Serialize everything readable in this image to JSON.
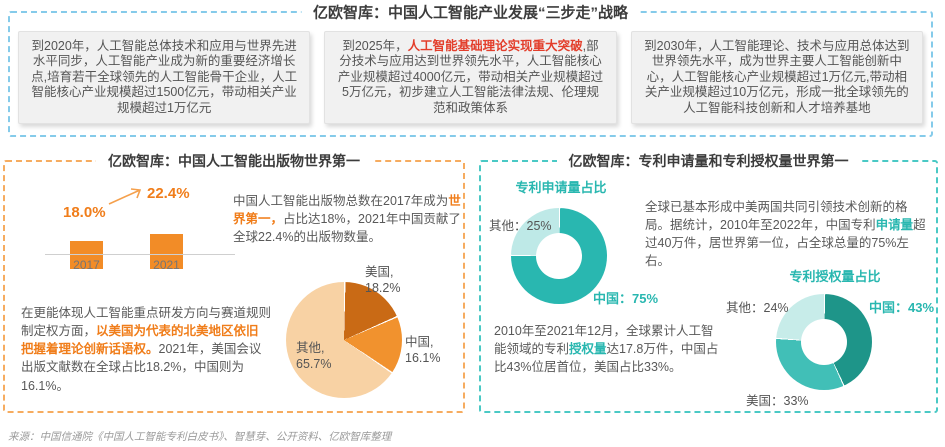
{
  "header": {
    "title": "亿欧智库：中国人工智能产业发展“三步走”战略"
  },
  "roadmap": {
    "milestones": [
      {
        "before": "到2020年，人工智能总体技术和应用与世界先进水平同步，人工智能产业成为新的重要经济增长点,培育若干全球领先的人工智能骨干企业，人工智能核心产业规模超过1500亿元，带动相关产业规模超过1万亿元",
        "highlight": "",
        "after": ""
      },
      {
        "before": "到2025年，",
        "highlight": "人工智能基础理论实现重大突破",
        "after": ",部分技术与应用达到世界领先水平，人工智能核心产业规模超过4000亿元，带动相关产业规模超过5万亿元，初步建立人工智能法律法规、伦理规范和政策体系"
      },
      {
        "before": "到2030年，人工智能理论、技术与应用总体达到世界领先水平，成为世界主要人工智能创新中心，人工智能核心产业规模超过1万亿元,带动相关产业规模超过10万亿元，形成一批全球领先的人工智能科技创新和人才培养基地",
        "highlight": "",
        "after": ""
      }
    ]
  },
  "publications": {
    "title": "亿欧智库：中国人工智能出版物世界第一",
    "para1": {
      "before": "中国人工智能出版物总数在2017年成为",
      "highlight": "世界第一，",
      "after": "占比达18%，2021年中国贡献了全球22.4%的出版物数量。"
    },
    "para2": {
      "before": "在更能体现人工智能重点研发方向与赛道规则制定权方面，",
      "highlight": "以美国为代表的北美地区依旧把握着理论创新话语权。",
      "after": "2021年，美国会议出版文献数在全球占比18.2%，中国则为16.1%。"
    }
  },
  "patents": {
    "title": "亿欧智库：专利申请量和专利授权量世界第一",
    "para1": {
      "before": "全球已基本形成中美两国共同引领技术创新的格局。据统计，2010年至2022年，中国专利",
      "highlight": "申请量",
      "after": "超过40万件，居世界第一位，占全球总量的75%左右。"
    },
    "para2": {
      "before": "2010年至2021年12月，全球累计人工智能领域的专利",
      "highlight": "授权量",
      "after": "达17.8万件，中国占比43%位居首位，美国占比33%。"
    }
  },
  "footer": {
    "source": "来源：中国信通院《中国人工智能专利白皮书》、智慧芽、公开资料、亿欧智库整理"
  },
  "colors": {
    "top_dash": "#85CBEA",
    "pub_dash": "#F6AC60",
    "pat_dash": "#4AC9C5",
    "red_highlight": "#E33E2B",
    "orange_highlight": "#F07D1A",
    "teal_highlight": "#29B7B0"
  },
  "chart_data": [
    {
      "id": "china-ai-publications-share",
      "type": "bar",
      "categories": [
        "2017",
        "2021"
      ],
      "values": [
        18.0,
        22.4
      ],
      "value_labels": [
        "18.0%",
        "22.4%"
      ],
      "title": "",
      "xlabel": "",
      "ylabel": "",
      "ylim": [
        0,
        45
      ],
      "bar_color": "#F28C27",
      "grid": false
    },
    {
      "id": "conference-publications-share-2021",
      "type": "pie",
      "gap_deg": 1.5,
      "slices": [
        {
          "label": "美国,",
          "value_label": "18.2%",
          "value": 18.2,
          "color": "#C96A15"
        },
        {
          "label": "中国,",
          "value_label": "16.1%",
          "value": 16.1,
          "color": "#F1922E"
        },
        {
          "label": "其他,",
          "value_label": "65.7%",
          "value": 65.7,
          "color": "#F8D2A4"
        }
      ]
    },
    {
      "id": "patent-applications-share",
      "type": "pie",
      "title": "专利申请量占比",
      "donut": true,
      "gap_deg": 1.5,
      "slices": [
        {
          "label": "中国：75%",
          "value": 75,
          "color": "#29B7B0"
        },
        {
          "label": "其他：25%",
          "value": 25,
          "color": "#BEE9E7"
        }
      ]
    },
    {
      "id": "patent-grants-share",
      "type": "pie",
      "title": "专利授权量占比",
      "donut": true,
      "gap_deg": 1.5,
      "slices": [
        {
          "label": "中国：43%",
          "value": 43,
          "color": "#1E9589"
        },
        {
          "label": "美国：33%",
          "value": 33,
          "color": "#41BFB7"
        },
        {
          "label": "其他：24%",
          "value": 24,
          "color": "#C7ECE9"
        }
      ]
    }
  ]
}
